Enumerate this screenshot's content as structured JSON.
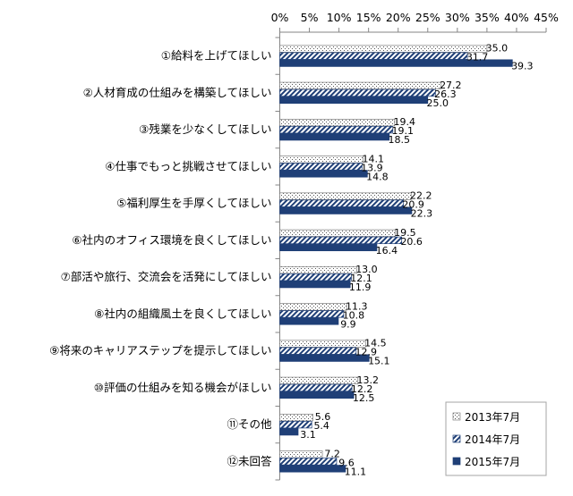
{
  "chart_data": {
    "type": "bar",
    "orientation": "horizontal",
    "xlim": [
      0,
      45
    ],
    "x_ticks": [
      "0%",
      "5%",
      "10%",
      "15%",
      "20%",
      "25%",
      "30%",
      "35%",
      "40%",
      "45%"
    ],
    "x_axis_position": "top",
    "grid": false,
    "legend_position": "bottom-right",
    "categories": [
      "①給料を上げてほしい",
      "②人材育成の仕組みを構築してほしい",
      "③残業を少なくしてほしい",
      "④仕事でもっと挑戦させてほしい",
      "⑤福利厚生を手厚くしてほしい",
      "⑥社内のオフィス環境を良くしてほしい",
      "⑦部活や旅行、交流会を活発にしてほしい",
      "⑧社内の組織風土を良くしてほしい",
      "⑨将来のキャリアステップを提示してほしい",
      "⑩評価の仕組みを知る機会がほしい",
      "⑪その他",
      "⑫未回答"
    ],
    "series": [
      {
        "name": "2013年7月",
        "pattern": "dots",
        "color": "#ffffff",
        "values": [
          35.0,
          27.2,
          19.4,
          14.1,
          22.2,
          19.5,
          13.0,
          11.3,
          14.5,
          13.2,
          5.6,
          7.2
        ],
        "labels": [
          "35.0",
          "27.2",
          "19.4",
          "14.1",
          "22.2",
          "19.5",
          "13.0",
          "11.3",
          "14.5",
          "13.2",
          "5.6",
          "7.2"
        ]
      },
      {
        "name": "2014年7月",
        "pattern": "diagonal-stripes",
        "color": "#1f3f77",
        "values": [
          31.7,
          26.3,
          19.1,
          13.9,
          20.9,
          20.6,
          12.1,
          10.8,
          12.9,
          12.2,
          5.4,
          9.6
        ],
        "labels": [
          "31.7",
          "26.3",
          "19.1",
          "13.9",
          "20.9",
          "20.6",
          "12.1",
          "10.8",
          "12.9",
          "12.2",
          "5.4",
          "9.6"
        ]
      },
      {
        "name": "2015年7月",
        "pattern": "solid",
        "color": "#1f3f77",
        "values": [
          39.3,
          25.0,
          18.5,
          14.8,
          22.3,
          16.4,
          11.9,
          9.9,
          15.1,
          12.5,
          3.1,
          11.1
        ],
        "labels": [
          "39.3",
          "25.0",
          "18.5",
          "14.8",
          "22.3",
          "16.4",
          "11.9",
          "9.9",
          "15.1",
          "12.5",
          "3.1",
          "11.1"
        ]
      }
    ]
  }
}
